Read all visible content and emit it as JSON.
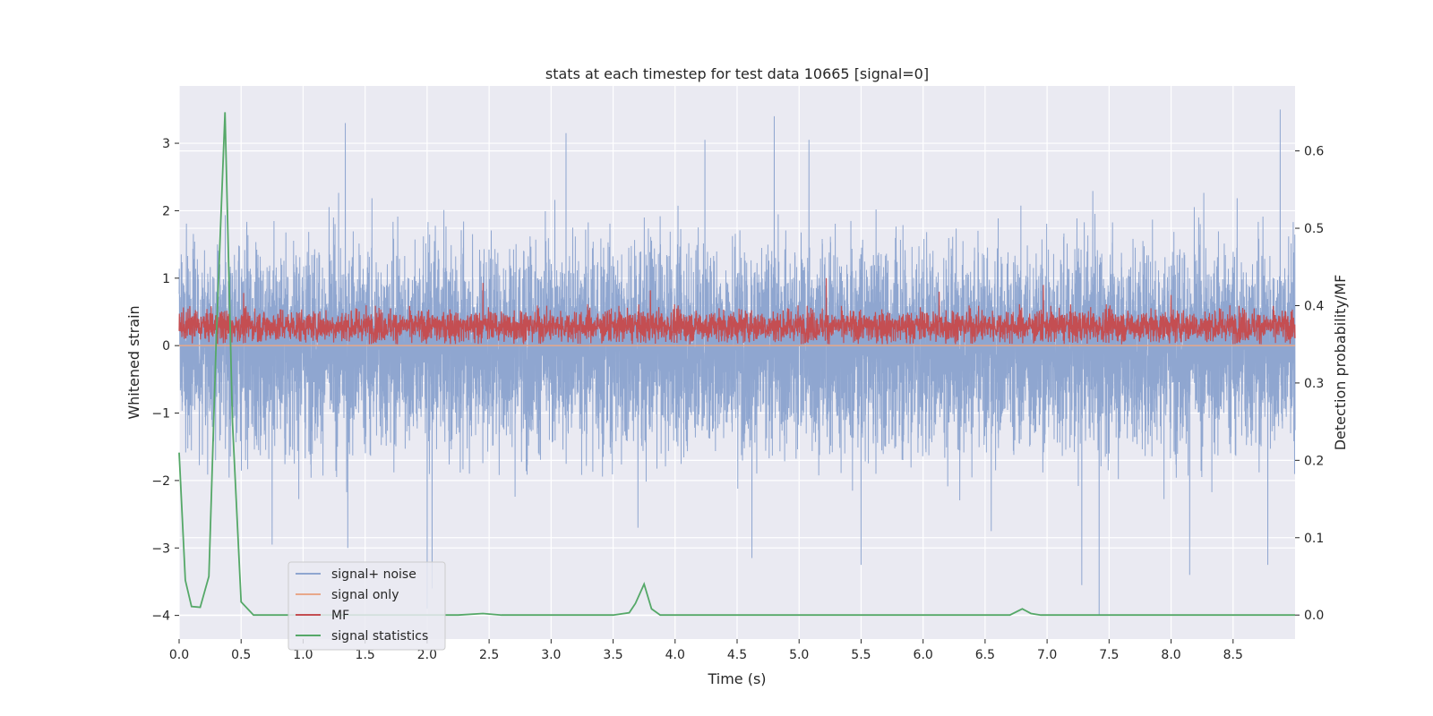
{
  "chart_data": {
    "type": "line",
    "title": "stats at each timestep for test data 10665 [signal=0]",
    "xlabel": "Time (s)",
    "ylabel": "Whitened strain",
    "y2label": "Detection probability/MF",
    "xlim": [
      0.0,
      9.0
    ],
    "ylim": [
      -4.35,
      3.85
    ],
    "y2lim": [
      -0.031,
      0.684
    ],
    "xticks": [
      "0.0",
      "0.5",
      "1.0",
      "1.5",
      "2.0",
      "2.5",
      "3.0",
      "3.5",
      "4.0",
      "4.5",
      "5.0",
      "5.5",
      "6.0",
      "6.5",
      "7.0",
      "7.5",
      "8.0",
      "8.5"
    ],
    "yticks": [
      "3",
      "2",
      "1",
      "0",
      "−1",
      "−2",
      "−3",
      "−4"
    ],
    "y2ticks": [
      "0.6",
      "0.5",
      "0.4",
      "0.3",
      "0.2",
      "0.1",
      "0.0"
    ],
    "legend_position": "lower-left",
    "series": [
      {
        "name": "signal+ noise",
        "color": "#8fa6d0",
        "description": "dense whitened strain noise, roughly within ±2.3 with spikes to about 3.5 and −4.0",
        "typical_range": [
          -2.3,
          2.3
        ],
        "spikes": [
          {
            "t": 1.34,
            "v": 3.3
          },
          {
            "t": 2.0,
            "v": -3.9
          },
          {
            "t": 2.04,
            "v": -3.6
          },
          {
            "t": 3.12,
            "v": 3.15
          },
          {
            "t": 4.24,
            "v": 3.05
          },
          {
            "t": 4.62,
            "v": -3.15
          },
          {
            "t": 4.8,
            "v": 3.4
          },
          {
            "t": 5.08,
            "v": 3.05
          },
          {
            "t": 5.5,
            "v": -3.25
          },
          {
            "t": 7.28,
            "v": -3.55
          },
          {
            "t": 7.42,
            "v": -4.0
          },
          {
            "t": 8.15,
            "v": -3.4
          },
          {
            "t": 8.78,
            "v": -3.25
          },
          {
            "t": 8.88,
            "v": 3.5
          },
          {
            "t": 1.36,
            "v": -3.0
          },
          {
            "t": 0.75,
            "v": -2.95
          },
          {
            "t": 3.7,
            "v": -2.7
          },
          {
            "t": 6.55,
            "v": -2.75
          }
        ]
      },
      {
        "name": "signal only",
        "color": "#e8a88a",
        "description": "zero everywhere (no signal)",
        "value": 0
      },
      {
        "name": "MF",
        "color": "#c44e52",
        "description": "matched-filter output, mostly between 0.05 and 0.6, occasional peaks near 0.9-1.0",
        "typical_range": [
          0.0,
          0.62
        ],
        "peaks": [
          {
            "t": 0.52,
            "v": 0.78
          },
          {
            "t": 2.45,
            "v": 0.93
          },
          {
            "t": 3.8,
            "v": 0.82
          },
          {
            "t": 5.22,
            "v": 1.0
          },
          {
            "t": 6.13,
            "v": 0.8
          },
          {
            "t": 6.97,
            "v": 0.9
          },
          {
            "t": 8.0,
            "v": 0.75
          }
        ]
      },
      {
        "name": "signal statistics",
        "color": "#55a868",
        "axis": "right",
        "x": [
          0.0,
          0.05,
          0.1,
          0.17,
          0.24,
          0.3,
          0.37,
          0.43,
          0.5,
          0.6,
          1.0,
          2.0,
          2.25,
          2.45,
          2.6,
          3.0,
          3.5,
          3.63,
          3.68,
          3.75,
          3.81,
          3.88,
          4.0,
          5.0,
          6.0,
          6.7,
          6.8,
          6.87,
          6.95,
          7.0,
          8.0,
          9.0
        ],
        "values": [
          0.21,
          0.045,
          0.011,
          0.01,
          0.05,
          0.36,
          0.65,
          0.25,
          0.017,
          0.0,
          0.0,
          0.0,
          0.0,
          0.002,
          0.0,
          0.0,
          0.0,
          0.003,
          0.015,
          0.04,
          0.008,
          0.0,
          0.0,
          0.0,
          0.0,
          0.0,
          0.008,
          0.002,
          0.0,
          0.0,
          0.0,
          0.0
        ]
      }
    ]
  }
}
